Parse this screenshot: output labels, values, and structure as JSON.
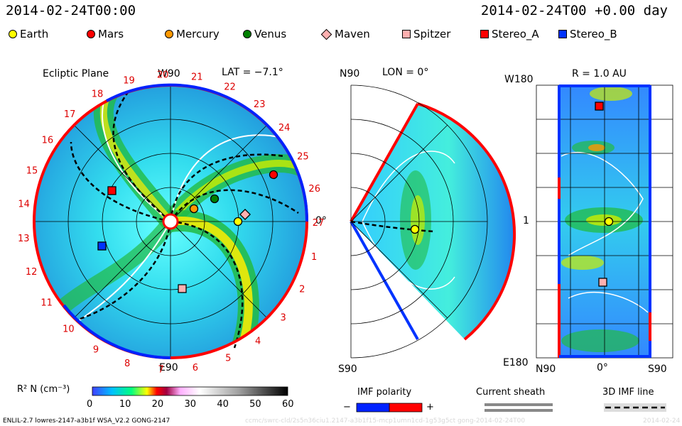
{
  "header": {
    "left_time": "2014-02-24T00:00",
    "right_time": "2014-02-24T00 +0.00 day"
  },
  "legend": [
    {
      "name": "Earth",
      "shape": "circle",
      "color": "#ffff00"
    },
    {
      "name": "Mars",
      "shape": "circle",
      "color": "#ff0000"
    },
    {
      "name": "Mercury",
      "shape": "circle",
      "color": "#ff9900"
    },
    {
      "name": "Venus",
      "shape": "circle",
      "color": "#008000"
    },
    {
      "name": "Maven",
      "shape": "diamond",
      "color": "#ffb0b0"
    },
    {
      "name": "Spitzer",
      "shape": "square",
      "color": "#ffb0b0"
    },
    {
      "name": "Stereo_A",
      "shape": "square",
      "color": "#ff0000"
    },
    {
      "name": "Stereo_B",
      "shape": "square",
      "color": "#0033ff"
    }
  ],
  "panels": {
    "ecliptic": {
      "title": "Ecliptic Plane",
      "lat": "LAT = −7.1°",
      "top_label": "W90",
      "bottom_label": "E90",
      "right_label": "0°",
      "sector_labels": [
        "20",
        "21",
        "22",
        "23",
        "24",
        "25",
        "26",
        "27",
        "1",
        "2",
        "3",
        "4",
        "5",
        "6",
        "7",
        "8",
        "9",
        "10",
        "11",
        "12",
        "13",
        "14",
        "15",
        "16",
        "17",
        "18",
        "19"
      ]
    },
    "meridional": {
      "title": "LON = 0°",
      "top_label": "N90",
      "bottom_label": "S90",
      "right_label": "0°"
    },
    "radial": {
      "title": "R = 1.0 AU",
      "top_left": "W180",
      "mid_left": "1",
      "bottom_left": "E180",
      "x_left": "N90",
      "x_mid": "0°",
      "x_right": "S90"
    }
  },
  "colorbar": {
    "label": "R² N (cm⁻³)",
    "ticks": [
      "0",
      "10",
      "20",
      "30",
      "40",
      "50",
      "60"
    ]
  },
  "imf_legend": {
    "polarity_label": "IMF polarity",
    "minus": "−",
    "plus": "+",
    "current_sheath_label": "Current sheath",
    "imf_line_label": "3D IMF line"
  },
  "footer": {
    "model": "ENLIL-2.7 lowres-2147-a3b1f WSA_V2.2 GONG-2147",
    "run": "ccmc/swrc-cld/2s5n36ciu1.2147-a3b1f15-mcp1umn1cd-1g53g5ct gong-2014-02-24T00",
    "stamp": "2014-02-24"
  },
  "chart_data": {
    "type": "heatmap",
    "title": "2014-02-24T00 +0.00 day",
    "quantity": "R² N (cm⁻³)",
    "color_range": [
      0,
      60
    ],
    "bodies_ecliptic": [
      {
        "name": "Earth",
        "sector": "27"
      },
      {
        "name": "Mercury",
        "sector": "27"
      },
      {
        "name": "Venus",
        "sector": "27"
      },
      {
        "name": "Maven",
        "sector": "27"
      },
      {
        "name": "Mars",
        "sector": "26"
      },
      {
        "name": "Stereo_A",
        "sector": "17"
      },
      {
        "name": "Stereo_B",
        "sector": "13"
      },
      {
        "name": "Spitzer",
        "sector": "5"
      }
    ]
  }
}
